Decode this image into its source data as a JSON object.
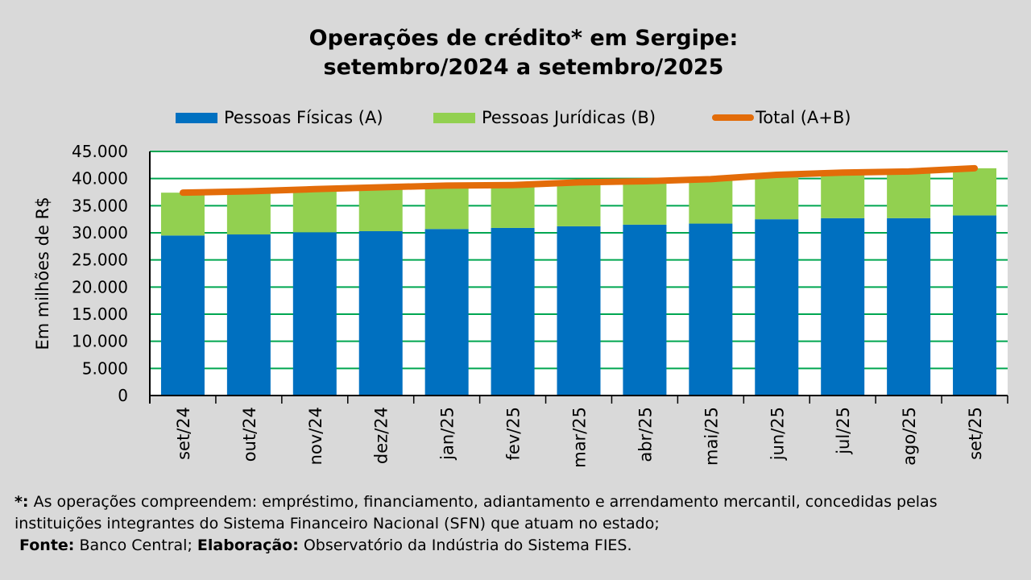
{
  "title": {
    "line1": "Operações de crédito* em Sergipe:",
    "line2": "setembro/2024 a setembro/2025"
  },
  "colors": {
    "pf": "#0070c0",
    "pj": "#92d050",
    "total": "#e36c09",
    "grid": "#00a651",
    "plot_bg": "#ffffff",
    "page_bg": "#d9d9d9"
  },
  "chart_data": {
    "type": "bar",
    "stacked": true,
    "categories": [
      "set/24",
      "out/24",
      "nov/24",
      "dez/24",
      "jan/25",
      "fev/25",
      "mar/25",
      "abr/25",
      "mai/25",
      "jun/25",
      "jul/25",
      "ago/25",
      "set/25"
    ],
    "series": [
      {
        "name": "Pessoas Físicas (A)",
        "type": "bar",
        "values": [
          29500,
          29700,
          30100,
          30300,
          30700,
          30900,
          31200,
          31500,
          31700,
          32500,
          32700,
          32700,
          33200
        ]
      },
      {
        "name": "Pessoas Jurídicas (B)",
        "type": "bar",
        "values": [
          7900,
          7950,
          7950,
          8100,
          8000,
          7900,
          8100,
          8000,
          8200,
          8200,
          8400,
          8600,
          8700
        ]
      },
      {
        "name": "Total (A+B)",
        "type": "line",
        "values": [
          37400,
          37650,
          38050,
          38400,
          38700,
          38800,
          39300,
          39500,
          39900,
          40700,
          41100,
          41300,
          41900
        ]
      }
    ],
    "ylabel": "Em milhões de R$",
    "ylim": [
      0,
      45000
    ],
    "yticks": [
      0,
      5000,
      10000,
      15000,
      20000,
      25000,
      30000,
      35000,
      40000,
      45000
    ],
    "ytick_labels": [
      "0",
      "5.000",
      "10.000",
      "15.000",
      "20.000",
      "25.000",
      "30.000",
      "35.000",
      "40.000",
      "45.000"
    ],
    "grid": true,
    "legend_position": "top"
  },
  "footnote": {
    "star_label": "*:",
    "star_text": " As operações compreendem: empréstimo, financiamento, adiantamento e arrendamento mercantil, concedidas pelas instituições integrantes do Sistema Financeiro Nacional (SFN) que atuam no estado;",
    "fonte_label": "Fonte:",
    "fonte_text": " Banco Central; ",
    "elab_label": "Elaboração:",
    "elab_text": "  Observatório da Indústria do Sistema FIES."
  }
}
